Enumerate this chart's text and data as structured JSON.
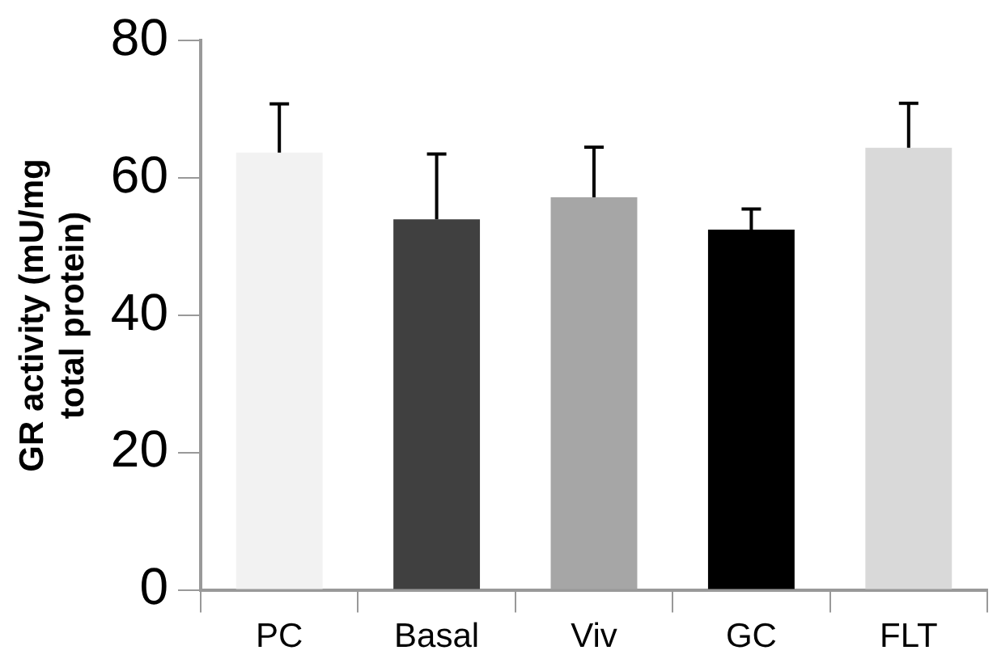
{
  "chart_data": {
    "type": "bar",
    "ylabel": "GR activity (mU/mg total protein)",
    "categories": [
      "PC",
      "Basal",
      "Viv",
      "GC",
      "FLT"
    ],
    "values": [
      63.7,
      54,
      57.2,
      52.5,
      64.4
    ],
    "colors": [
      "#f2f2f2",
      "#404040",
      "#a6a6a6",
      "#000000",
      "#d9d9d9"
    ],
    "errors": [
      [
        63.7,
        70.8
      ],
      [
        54,
        63.5
      ],
      [
        57.2,
        64.5
      ],
      [
        52.5,
        55.5
      ],
      [
        64.4,
        70.9
      ]
    ],
    "ylim": [
      0,
      80
    ],
    "yticks": [
      0,
      20,
      40,
      60,
      80
    ],
    "grid": false,
    "legend": false
  }
}
